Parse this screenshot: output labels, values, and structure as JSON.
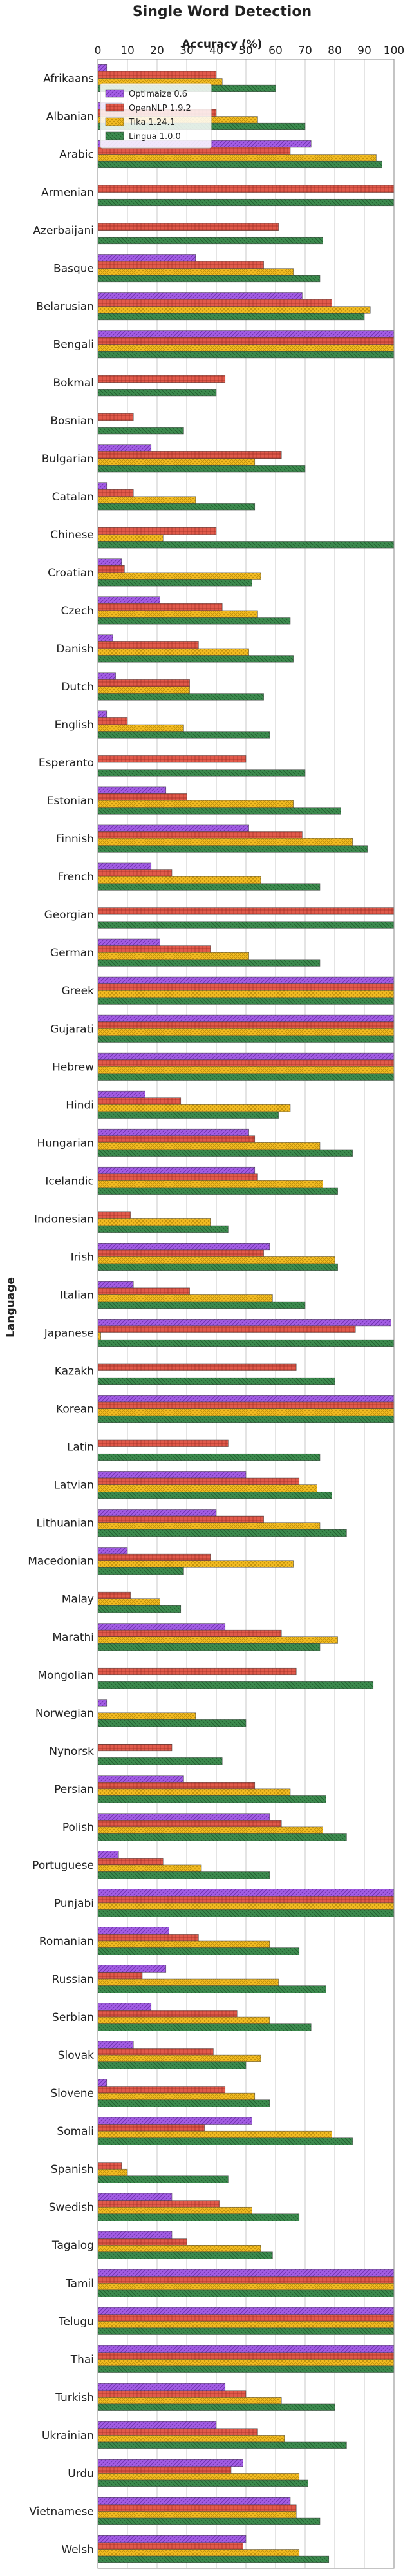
{
  "chart_data": {
    "type": "bar",
    "orientation": "horizontal",
    "title": "Single Word Detection",
    "xlabel": "Accuracy (%)",
    "ylabel": "Language",
    "xlim": [
      0,
      100
    ],
    "xticks": [
      0,
      10,
      20,
      30,
      40,
      50,
      60,
      70,
      80,
      90,
      100
    ],
    "grid": true,
    "legend_position": "top-left",
    "categories": [
      "Afrikaans",
      "Albanian",
      "Arabic",
      "Armenian",
      "Azerbaijani",
      "Basque",
      "Belarusian",
      "Bengali",
      "Bokmal",
      "Bosnian",
      "Bulgarian",
      "Catalan",
      "Chinese",
      "Croatian",
      "Czech",
      "Danish",
      "Dutch",
      "English",
      "Esperanto",
      "Estonian",
      "Finnish",
      "French",
      "Georgian",
      "German",
      "Greek",
      "Gujarati",
      "Hebrew",
      "Hindi",
      "Hungarian",
      "Icelandic",
      "Indonesian",
      "Irish",
      "Italian",
      "Japanese",
      "Kazakh",
      "Korean",
      "Latin",
      "Latvian",
      "Lithuanian",
      "Macedonian",
      "Malay",
      "Marathi",
      "Mongolian",
      "Norwegian",
      "Nynorsk",
      "Persian",
      "Polish",
      "Portuguese",
      "Punjabi",
      "Romanian",
      "Russian",
      "Serbian",
      "Slovak",
      "Slovene",
      "Somali",
      "Spanish",
      "Swedish",
      "Tagalog",
      "Tamil",
      "Telugu",
      "Thai",
      "Turkish",
      "Ukrainian",
      "Urdu",
      "Vietnamese",
      "Welsh"
    ],
    "series": [
      {
        "name": "Optimaize 0.6",
        "color": "#a45ee5",
        "values": [
          3,
          8,
          72,
          0,
          0,
          33,
          69,
          100,
          0,
          0,
          18,
          3,
          0,
          8,
          21,
          5,
          6,
          3,
          0,
          23,
          51,
          18,
          0,
          21,
          100,
          100,
          100,
          16,
          51,
          53,
          0,
          58,
          12,
          99,
          0,
          100,
          0,
          50,
          40,
          10,
          0,
          43,
          0,
          3,
          0,
          29,
          58,
          7,
          100,
          24,
          23,
          18,
          12,
          3,
          52,
          0,
          25,
          25,
          100,
          100,
          100,
          43,
          40,
          49,
          65,
          50
        ]
      },
      {
        "name": "OpenNLP 1.9.2",
        "color": "#e15a4b",
        "values": [
          40,
          40,
          65,
          100,
          61,
          56,
          79,
          100,
          43,
          12,
          62,
          12,
          40,
          9,
          42,
          34,
          31,
          10,
          50,
          30,
          69,
          25,
          100,
          38,
          100,
          100,
          100,
          28,
          53,
          54,
          11,
          56,
          31,
          87,
          67,
          100,
          44,
          68,
          56,
          38,
          11,
          62,
          67,
          0,
          25,
          53,
          62,
          22,
          100,
          34,
          15,
          47,
          39,
          43,
          36,
          8,
          41,
          30,
          100,
          100,
          100,
          50,
          54,
          45,
          67,
          49
        ]
      },
      {
        "name": "Tika 1.24.1",
        "color": "#f5bd23",
        "values": [
          42,
          54,
          94,
          0,
          0,
          66,
          92,
          100,
          0,
          0,
          53,
          33,
          22,
          55,
          54,
          51,
          31,
          29,
          0,
          66,
          86,
          55,
          0,
          51,
          100,
          100,
          100,
          65,
          75,
          76,
          38,
          80,
          59,
          1,
          0,
          100,
          0,
          74,
          75,
          66,
          21,
          81,
          0,
          33,
          0,
          65,
          76,
          35,
          100,
          58,
          61,
          58,
          55,
          53,
          79,
          10,
          52,
          55,
          100,
          100,
          100,
          62,
          63,
          68,
          67,
          68
        ]
      },
      {
        "name": "Lingua 1.0.0",
        "color": "#3d8c4f",
        "values": [
          60,
          70,
          96,
          100,
          76,
          75,
          90,
          100,
          40,
          29,
          70,
          53,
          100,
          52,
          65,
          66,
          56,
          58,
          70,
          82,
          91,
          75,
          100,
          75,
          100,
          100,
          100,
          61,
          86,
          81,
          44,
          81,
          70,
          100,
          80,
          100,
          75,
          79,
          84,
          29,
          28,
          75,
          93,
          50,
          42,
          77,
          84,
          58,
          100,
          68,
          77,
          72,
          50,
          58,
          86,
          44,
          68,
          59,
          100,
          100,
          100,
          80,
          84,
          71,
          75,
          78
        ]
      }
    ]
  }
}
